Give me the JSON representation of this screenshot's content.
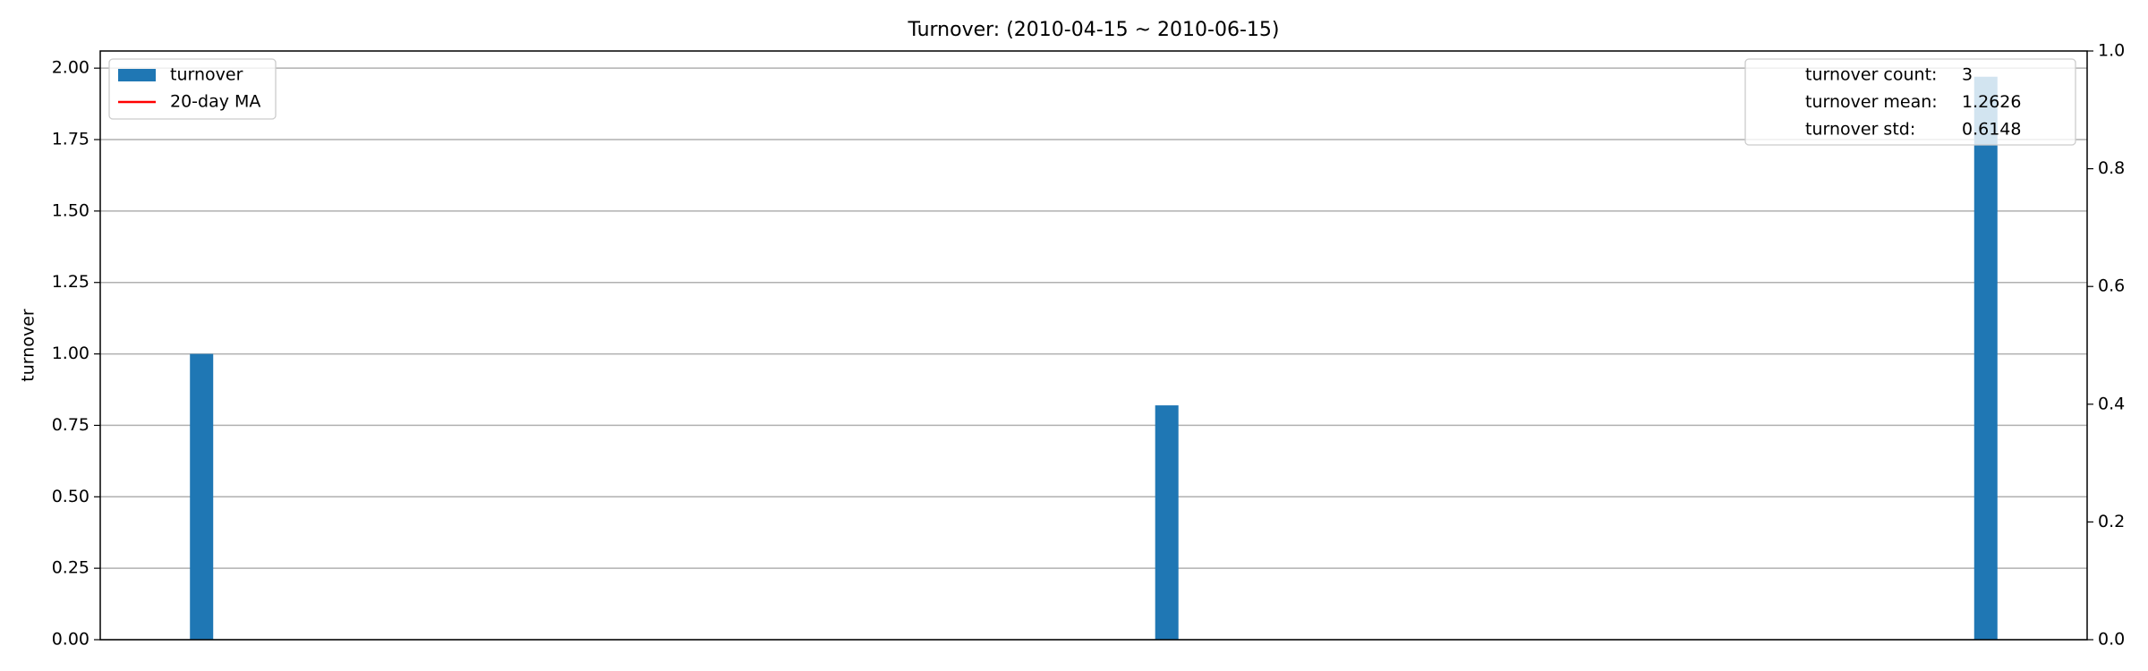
{
  "chart_data": {
    "type": "bar",
    "title": "Turnover: (2010-04-15 ~ 2010-06-15)",
    "ylabel": "turnover",
    "categories": [
      null,
      null,
      null,
      null,
      null,
      null,
      null,
      null,
      null,
      null,
      null,
      null,
      null,
      null,
      null,
      null,
      null,
      null,
      null,
      null,
      null,
      null,
      null,
      null,
      null,
      null,
      null,
      null,
      null,
      null,
      null,
      null,
      null,
      null,
      null,
      null,
      null,
      null,
      null,
      null,
      null,
      null,
      null,
      null,
      null,
      null,
      null,
      null,
      null,
      null,
      null,
      null,
      null,
      null,
      null,
      null,
      null,
      null,
      null,
      null,
      null,
      null
    ],
    "series": [
      {
        "name": "turnover",
        "color": "#1f77b4",
        "values": [
          1.0,
          null,
          null,
          null,
          null,
          null,
          null,
          null,
          null,
          null,
          null,
          null,
          null,
          null,
          null,
          null,
          null,
          null,
          null,
          null,
          null,
          null,
          null,
          null,
          null,
          null,
          null,
          null,
          null,
          null,
          null,
          null,
          null,
          0.82,
          null,
          null,
          null,
          null,
          null,
          null,
          null,
          null,
          null,
          null,
          null,
          null,
          null,
          null,
          null,
          null,
          null,
          null,
          null,
          null,
          null,
          null,
          null,
          null,
          null,
          null,
          null,
          1.97
        ]
      },
      {
        "name": "20-day MA",
        "color": "#ff0000",
        "values": [
          null,
          null,
          null,
          null,
          null,
          null,
          null,
          null,
          null,
          null,
          null,
          null,
          null,
          null,
          null,
          null,
          null,
          null,
          null,
          null,
          null,
          null,
          null,
          null,
          null,
          null,
          null,
          null,
          null,
          null,
          null,
          null,
          null,
          null,
          null,
          null,
          null,
          null,
          null,
          null,
          null,
          null,
          null,
          null,
          null,
          null,
          null,
          null,
          null,
          null,
          null,
          null,
          null,
          null,
          null,
          null,
          null,
          null,
          null,
          null,
          null,
          null
        ]
      }
    ],
    "ylim": [
      0,
      2.06
    ],
    "yticks": [
      {
        "value": 0,
        "label": "0.00"
      },
      {
        "value": 0.25,
        "label": "0.25"
      },
      {
        "value": 0.5,
        "label": "0.50"
      },
      {
        "value": 0.75,
        "label": "0.75"
      },
      {
        "value": 1,
        "label": "1.00"
      },
      {
        "value": 1.25,
        "label": "1.25"
      },
      {
        "value": 1.5,
        "label": "1.50"
      },
      {
        "value": 1.75,
        "label": "1.75"
      },
      {
        "value": 2,
        "label": "2.00"
      }
    ],
    "y2lim": [
      0,
      1
    ],
    "y2ticks": [
      {
        "value": 0,
        "label": "0.0"
      },
      {
        "value": 0.2,
        "label": "0.2"
      },
      {
        "value": 0.4,
        "label": "0.4"
      },
      {
        "value": 0.6,
        "label": "0.6"
      },
      {
        "value": 0.8,
        "label": "0.8"
      },
      {
        "value": 1,
        "label": "1.0"
      }
    ],
    "grid": true,
    "legend": "upper left",
    "stats": [
      {
        "label": "turnover count:",
        "value": 3
      },
      {
        "label": "turnover mean:",
        "value": 1.2626
      },
      {
        "label": "turnover std:",
        "value": 0.6148
      }
    ]
  }
}
